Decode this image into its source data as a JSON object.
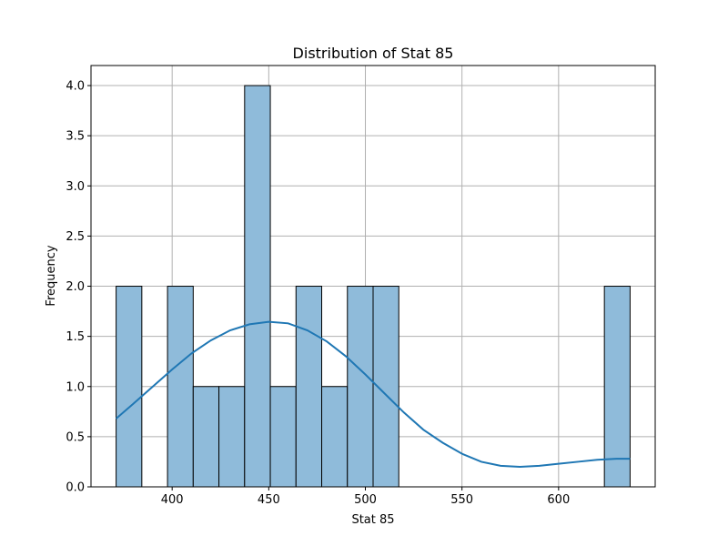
{
  "chart_data": {
    "type": "bar",
    "title": "Distribution of Stat 85",
    "xlabel": "Stat 85",
    "ylabel": "Frequency",
    "xlim": [
      358,
      650
    ],
    "ylim": [
      0,
      4.2
    ],
    "xticks": [
      400,
      450,
      500,
      550,
      600
    ],
    "yticks": [
      0.0,
      0.5,
      1.0,
      1.5,
      2.0,
      2.5,
      3.0,
      3.5,
      4.0
    ],
    "xtick_labels": [
      "400",
      "450",
      "500",
      "550",
      "600"
    ],
    "ytick_labels": [
      "0.0",
      "0.5",
      "1.0",
      "1.5",
      "2.0",
      "2.5",
      "3.0",
      "3.5",
      "4.0"
    ],
    "grid": true,
    "bins": [
      {
        "start": 371.0,
        "end": 384.3,
        "count": 2
      },
      {
        "start": 384.3,
        "end": 397.6,
        "count": 0
      },
      {
        "start": 397.6,
        "end": 410.9,
        "count": 2
      },
      {
        "start": 410.9,
        "end": 424.2,
        "count": 1
      },
      {
        "start": 424.2,
        "end": 437.5,
        "count": 1
      },
      {
        "start": 437.5,
        "end": 450.8,
        "count": 4
      },
      {
        "start": 450.8,
        "end": 464.1,
        "count": 1
      },
      {
        "start": 464.1,
        "end": 477.4,
        "count": 2
      },
      {
        "start": 477.4,
        "end": 490.7,
        "count": 1
      },
      {
        "start": 490.7,
        "end": 504.0,
        "count": 2
      },
      {
        "start": 504.0,
        "end": 517.3,
        "count": 2
      },
      {
        "start": 517.3,
        "end": 530.6,
        "count": 0
      },
      {
        "start": 530.6,
        "end": 543.9,
        "count": 0
      },
      {
        "start": 543.9,
        "end": 557.2,
        "count": 0
      },
      {
        "start": 557.2,
        "end": 570.5,
        "count": 0
      },
      {
        "start": 570.5,
        "end": 583.8,
        "count": 0
      },
      {
        "start": 583.8,
        "end": 597.1,
        "count": 0
      },
      {
        "start": 597.1,
        "end": 610.4,
        "count": 0
      },
      {
        "start": 610.4,
        "end": 623.7,
        "count": 0
      },
      {
        "start": 623.7,
        "end": 637.0,
        "count": 2
      }
    ],
    "kde": {
      "x": [
        371,
        380,
        390,
        400,
        410,
        420,
        430,
        440,
        450,
        460,
        470,
        480,
        490,
        500,
        510,
        520,
        530,
        540,
        550,
        560,
        570,
        580,
        590,
        600,
        610,
        620,
        630,
        637
      ],
      "y": [
        0.68,
        0.83,
        1.0,
        1.17,
        1.33,
        1.46,
        1.56,
        1.62,
        1.645,
        1.63,
        1.56,
        1.45,
        1.3,
        1.12,
        0.93,
        0.74,
        0.57,
        0.44,
        0.33,
        0.25,
        0.21,
        0.2,
        0.21,
        0.23,
        0.25,
        0.27,
        0.28,
        0.28
      ]
    },
    "colors": {
      "bar_fill": "#8fbbda",
      "bar_edge": "#000000",
      "kde_line": "#1f77b4",
      "grid": "#b0b0b0",
      "axes": "#000000"
    }
  }
}
